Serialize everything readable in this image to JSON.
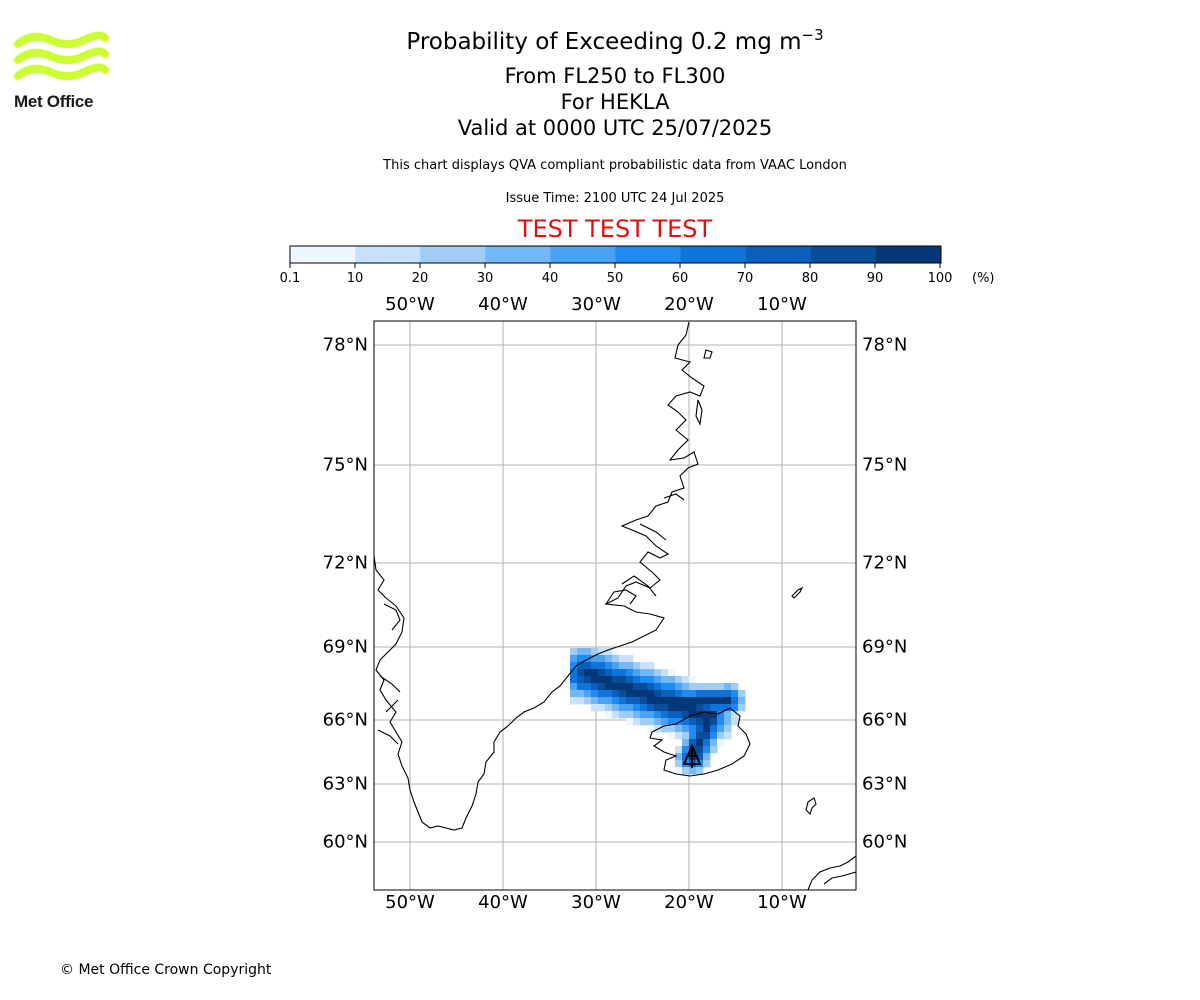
{
  "logo": {
    "text": "Met Office",
    "color": "#ccff33"
  },
  "header": {
    "title": "Probability of Exceeding 0.2 mg m",
    "title_superscript": "−3",
    "level_range": "From FL250 to FL300",
    "volcano": "For HEKLA",
    "valid_time": "Valid at 0000 UTC 25/07/2025",
    "description": "This chart displays QVA compliant probabilistic data from VAAC London",
    "issue_time": "Issue Time: 2100 UTC 24 Jul 2025",
    "test_banner": "TEST TEST TEST",
    "test_color": "#e01010"
  },
  "colorbar": {
    "ticks": [
      "0.1",
      "10",
      "20",
      "30",
      "40",
      "50",
      "60",
      "70",
      "80",
      "90",
      "100"
    ],
    "unit": "(%)",
    "colors": [
      "#eef6ff",
      "#c6e1f9",
      "#9fcdf6",
      "#74b7f5",
      "#4aa2f2",
      "#1f8bf0",
      "#0f74d9",
      "#0a5fbd",
      "#084c9a",
      "#063877"
    ]
  },
  "map": {
    "lon_labels": [
      "50°W",
      "40°W",
      "30°W",
      "20°W",
      "10°W"
    ],
    "lat_labels": [
      "78°N",
      "75°N",
      "72°N",
      "69°N",
      "66°N",
      "63°N",
      "60°N"
    ],
    "volcano_marker": "volcano-triangle-icon"
  },
  "footer": {
    "copyright": "© Met Office Crown Copyright"
  }
}
